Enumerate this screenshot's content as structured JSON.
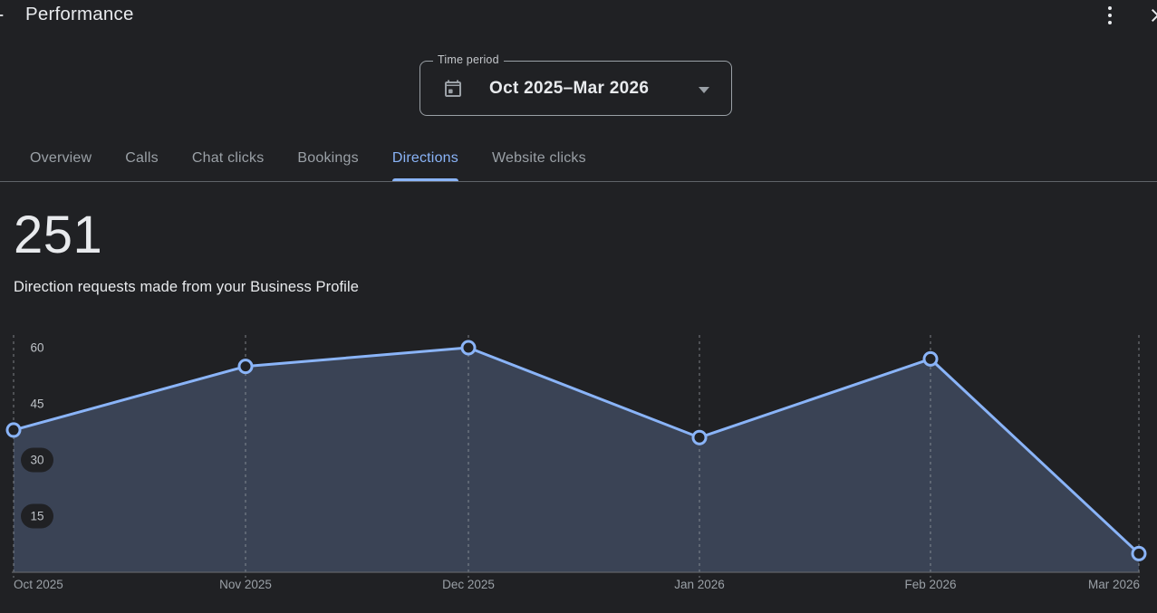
{
  "header": {
    "title": "Performance",
    "back_icon": "arrow-back-icon",
    "menu_icon": "kebab-menu-icon",
    "close_icon": "close-icon"
  },
  "time_period": {
    "label": "Time period",
    "value": "Oct 2025–Mar 2026",
    "calendar_icon": "calendar-icon",
    "dropdown_icon": "caret-down-icon"
  },
  "tabs": {
    "items": [
      {
        "label": "Overview",
        "active": false
      },
      {
        "label": "Calls",
        "active": false
      },
      {
        "label": "Chat clicks",
        "active": false
      },
      {
        "label": "Bookings",
        "active": false
      },
      {
        "label": "Directions",
        "active": true
      },
      {
        "label": "Website clicks",
        "active": false
      }
    ]
  },
  "metric": {
    "value": "251",
    "description": "Direction requests made from your Business Profile"
  },
  "chart_data": {
    "type": "area",
    "title": "Direction requests",
    "categories": [
      "Oct 2025",
      "Nov 2025",
      "Dec 2025",
      "Jan 2026",
      "Feb 2026",
      "Mar 2026"
    ],
    "values": [
      38,
      55,
      60,
      36,
      57,
      5
    ],
    "total": 251,
    "y_ticks": [
      15,
      30,
      45,
      60
    ],
    "ylim": [
      0,
      63
    ],
    "xlabel": "",
    "ylabel": "",
    "grid": "dashed-vertical-gridlines",
    "legend": "none",
    "line_color": "#8ab4f8",
    "fill_color": "#3a4355",
    "point_style": "open-circle"
  },
  "colors": {
    "background": "#202124",
    "accent_blue": "#8ab4f8",
    "divider": "#5f6368",
    "text_primary": "#e8eaed",
    "text_secondary": "#9aa0a6",
    "tick_label": "#bdc1c6"
  }
}
